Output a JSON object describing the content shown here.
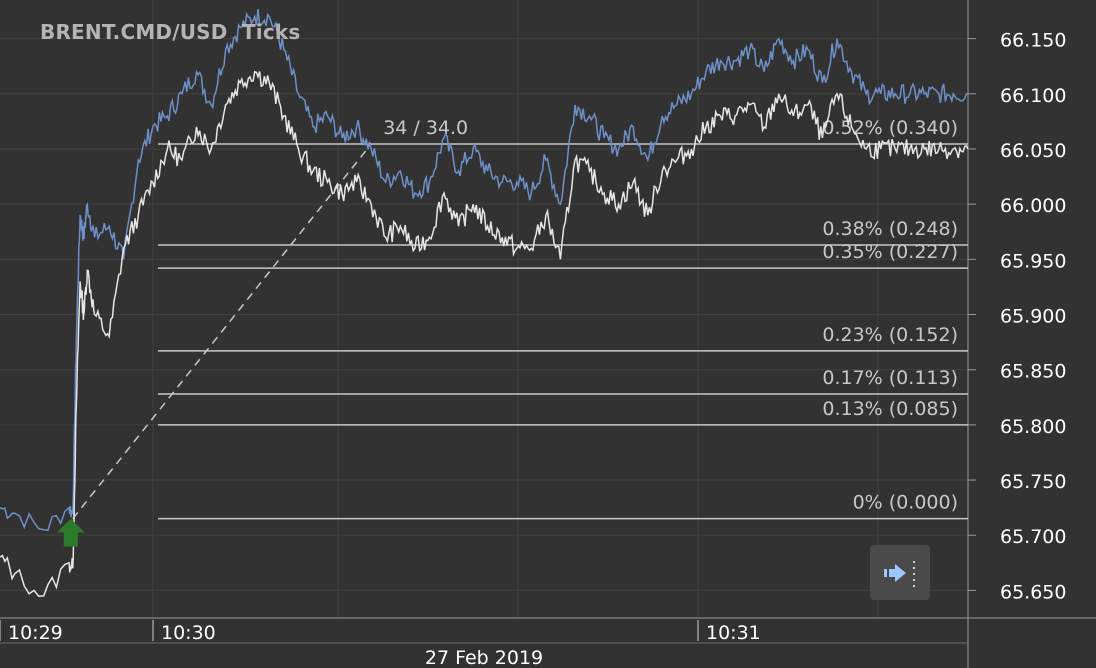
{
  "header": {
    "symbol": "BRENT.CMD/USD",
    "timeframe": "Ticks"
  },
  "chart_data": {
    "type": "line",
    "title": "BRENT.CMD/USD  Ticks",
    "y_ticks": [
      66.15,
      66.1,
      66.05,
      66.0,
      65.95,
      65.9,
      65.85,
      65.8,
      65.75,
      65.7,
      65.65
    ],
    "ylim": [
      65.625,
      66.185
    ],
    "x_ticks": [
      "10:29",
      "10:30",
      "10:31"
    ],
    "x_date": "27 Feb 2019",
    "grid": true,
    "series": [
      {
        "role": "ask",
        "color": "#6e90c8",
        "x": [
          0,
          0.2,
          0.6,
          0.95,
          1.0,
          1.05,
          1.1,
          1.15,
          1.2,
          1.3,
          1.5,
          1.7,
          1.9,
          2.1,
          2.3,
          2.5,
          2.7,
          2.9,
          3.1,
          3.3,
          3.5,
          3.7,
          3.9,
          4.1,
          4.3,
          4.5,
          4.7,
          4.9,
          5.1,
          5.3,
          5.5,
          5.7,
          5.9,
          6.1,
          6.3,
          6.5,
          6.7,
          6.9,
          7.1,
          7.3,
          7.5,
          7.7,
          7.9,
          8.1,
          8.3,
          8.5,
          8.7,
          8.9,
          9.1,
          9.3,
          9.5,
          9.7,
          9.9,
          10.1,
          10.3,
          10.5,
          10.7,
          10.9,
          11.1,
          11.3,
          11.5,
          11.7,
          11.9,
          12.1,
          12.3,
          12.5,
          12.7,
          12.9,
          13.1,
          13.3
        ],
        "y": [
          65.725,
          65.72,
          65.705,
          65.725,
          65.72,
          65.88,
          65.99,
          65.97,
          66.0,
          65.97,
          65.98,
          65.95,
          66.04,
          66.07,
          66.08,
          66.1,
          66.12,
          66.09,
          66.14,
          66.16,
          66.17,
          66.17,
          66.14,
          66.1,
          66.07,
          66.08,
          66.06,
          66.07,
          66.05,
          66.02,
          66.03,
          66.01,
          66.02,
          66.06,
          66.03,
          66.05,
          66.03,
          66.02,
          66.02,
          66.01,
          66.04,
          66.0,
          66.09,
          66.08,
          66.06,
          66.05,
          66.07,
          66.04,
          66.08,
          66.09,
          66.1,
          66.12,
          66.13,
          66.13,
          66.14,
          66.12,
          66.15,
          66.13,
          66.14,
          66.11,
          66.15,
          66.12,
          66.1,
          66.1,
          66.1,
          66.1,
          66.1,
          66.1,
          66.1,
          66.1
        ]
      },
      {
        "role": "bid",
        "color": "#e6e6e6",
        "x": [
          0,
          0.2,
          0.6,
          0.95,
          1.0,
          1.05,
          1.1,
          1.15,
          1.2,
          1.3,
          1.5,
          1.7,
          1.9,
          2.1,
          2.3,
          2.5,
          2.7,
          2.9,
          3.1,
          3.3,
          3.5,
          3.7,
          3.9,
          4.1,
          4.3,
          4.5,
          4.7,
          4.9,
          5.1,
          5.3,
          5.5,
          5.7,
          5.9,
          6.1,
          6.3,
          6.5,
          6.7,
          6.9,
          7.1,
          7.3,
          7.5,
          7.7,
          7.9,
          8.1,
          8.3,
          8.5,
          8.7,
          8.9,
          9.1,
          9.3,
          9.5,
          9.7,
          9.9,
          10.1,
          10.3,
          10.5,
          10.7,
          10.9,
          11.1,
          11.3,
          11.5,
          11.7,
          11.9,
          12.1,
          12.3,
          12.5,
          12.7,
          12.9,
          13.1,
          13.3
        ],
        "y": [
          65.68,
          65.665,
          65.645,
          65.675,
          65.67,
          65.82,
          65.93,
          65.9,
          65.94,
          65.9,
          65.88,
          65.96,
          65.99,
          66.02,
          66.05,
          66.04,
          66.07,
          66.05,
          66.09,
          66.11,
          66.12,
          66.11,
          66.08,
          66.05,
          66.03,
          66.02,
          66.01,
          66.02,
          66.0,
          65.97,
          65.98,
          65.96,
          65.97,
          66.01,
          65.98,
          66.0,
          65.98,
          65.97,
          65.96,
          65.96,
          65.99,
          65.95,
          66.04,
          66.03,
          66.01,
          66.0,
          66.02,
          65.99,
          66.03,
          66.04,
          66.05,
          66.07,
          66.08,
          66.08,
          66.09,
          66.07,
          66.1,
          66.08,
          66.09,
          66.06,
          66.1,
          66.07,
          66.05,
          66.05,
          66.05,
          66.05,
          66.05,
          66.05,
          66.05,
          66.05
        ]
      }
    ],
    "fib_levels": [
      {
        "label": "0.52% (0.340)",
        "value": 66.0545
      },
      {
        "label": "0.38% (0.248)",
        "value": 65.963
      },
      {
        "label": "0.35% (0.227)",
        "value": 65.942
      },
      {
        "label": "0.23% (0.152)",
        "value": 65.867
      },
      {
        "label": "0.17% (0.113)",
        "value": 65.828
      },
      {
        "label": "0.13% (0.085)",
        "value": 65.8
      },
      {
        "label": "0% (0.000)",
        "value": 65.715
      }
    ],
    "trendline_label": "34 / 34.0",
    "trendline": {
      "x": [
        1.0,
        5.1
      ],
      "y": [
        65.715,
        66.0545
      ]
    }
  },
  "colors": {
    "background": "#323232",
    "grid": "#404040",
    "axis_text": "#ffffff",
    "fib_line": "#c8c8c8",
    "fib_text": "#c8c8c8",
    "marker": "#2a7a2a",
    "ask": "#6e90c8",
    "bid": "#e6e6e6"
  },
  "nav_button": {
    "icon": "arrow-right-icon"
  }
}
